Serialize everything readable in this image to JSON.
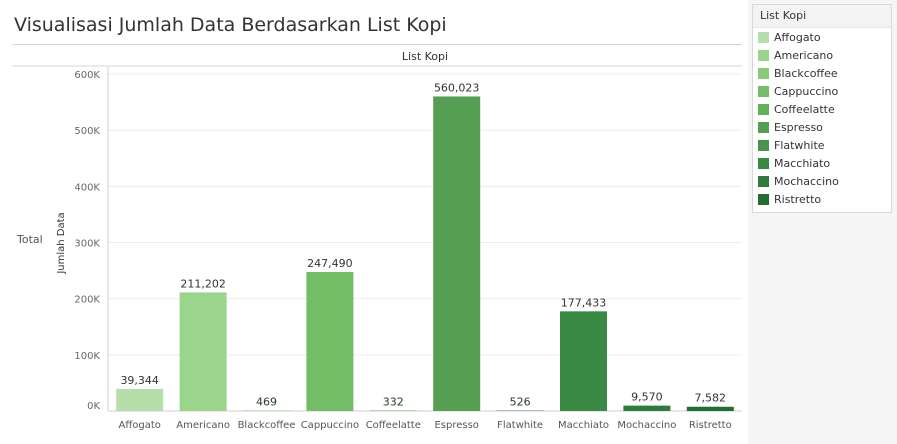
{
  "title": "Visualisasi Jumlah Data Berdasarkan List Kopi",
  "legend": {
    "title": "List Kopi",
    "items": [
      {
        "label": "Affogato",
        "color": "#b5deaa"
      },
      {
        "label": "Americano",
        "color": "#9bd58b"
      },
      {
        "label": "Blackcoffee",
        "color": "#86cc78"
      },
      {
        "label": "Cappuccino",
        "color": "#72bd65"
      },
      {
        "label": "Coffeelatte",
        "color": "#62b15a"
      },
      {
        "label": "Espresso",
        "color": "#569f52"
      },
      {
        "label": "Flatwhite",
        "color": "#4b934d"
      },
      {
        "label": "Macchiato",
        "color": "#3a8a45"
      },
      {
        "label": "Mochaccino",
        "color": "#2f7a3c"
      },
      {
        "label": "Ristretto",
        "color": "#236d33"
      }
    ]
  },
  "chart_data": {
    "type": "bar",
    "column_header": "List Kopi",
    "row_header": "Total",
    "ylabel": "Jumlah Data",
    "categories": [
      "Affogato",
      "Americano",
      "Blackcoffee",
      "Cappuccino",
      "Coffeelatte",
      "Espresso",
      "Flatwhite",
      "Macchiato",
      "Mochaccino",
      "Ristretto"
    ],
    "values": [
      39344,
      211202,
      469,
      247490,
      332,
      560023,
      526,
      177433,
      9570,
      7582
    ],
    "value_labels": [
      "39,344",
      "211,202",
      "469",
      "247,490",
      "332",
      "560,023",
      "526",
      "177,433",
      "9,570",
      "7,582"
    ],
    "colors": [
      "#b5deaa",
      "#9bd58b",
      "#86cc78",
      "#72bd65",
      "#62b15a",
      "#569f52",
      "#4b934d",
      "#3a8a45",
      "#2f7a3c",
      "#236d33"
    ],
    "ylim": [
      0,
      600000
    ],
    "yticks": [
      0,
      100000,
      200000,
      300000,
      400000,
      500000,
      600000
    ],
    "ytick_labels": [
      "0K",
      "100K",
      "200K",
      "300K",
      "400K",
      "500K",
      "600K"
    ],
    "grid": true,
    "legend_position": "right"
  }
}
